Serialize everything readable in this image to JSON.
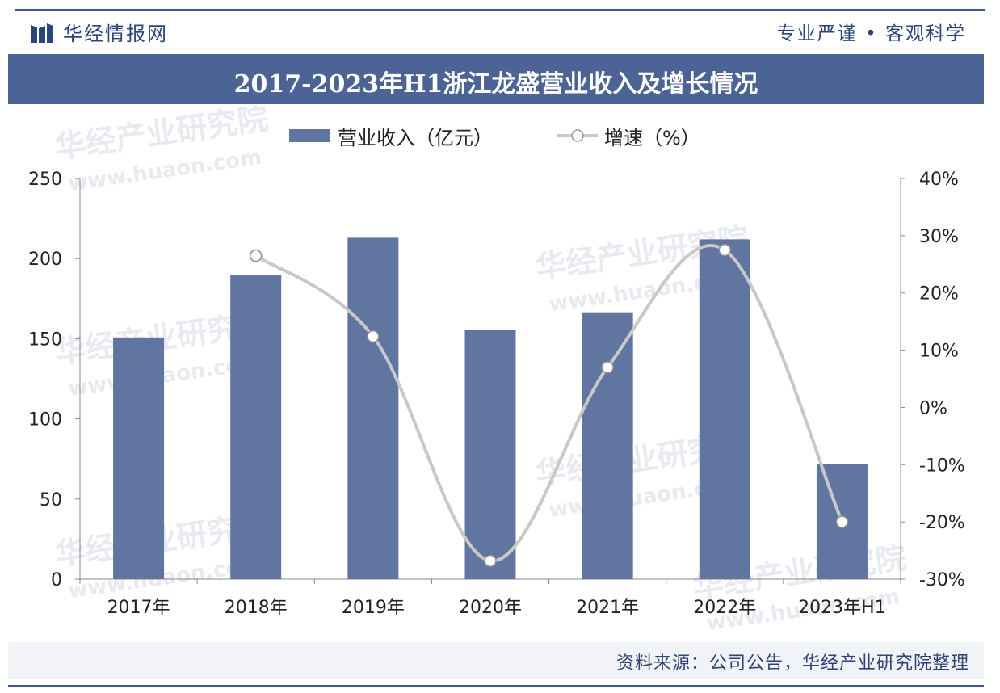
{
  "header": {
    "brand": "华经情报网",
    "slogan": "专业严谨 • 客观科学"
  },
  "title": "2017-2023年H1浙江龙盛营业收入及增长情况",
  "watermark": {
    "cn": "华经产业研究院",
    "url": "www.huaon.com"
  },
  "footer": {
    "source": "资料来源：公司公告，华经产业研究院整理"
  },
  "colors": {
    "bar": "#60759f",
    "line": "#c8c8c8",
    "title_bar": "#4c6396",
    "brand_text": "#2c4578"
  },
  "chart_data": {
    "type": "bar",
    "categories": [
      "2017年",
      "2018年",
      "2019年",
      "2020年",
      "2021年",
      "2022年",
      "2023年H1"
    ],
    "series": [
      {
        "name": "营业收入（亿元）",
        "type": "bar",
        "axis": "left",
        "values": [
          150.8,
          190.0,
          213.0,
          155.5,
          166.5,
          212.0,
          71.8
        ]
      },
      {
        "name": "增速（%）",
        "type": "line",
        "axis": "right",
        "values": [
          null,
          26.5,
          12.4,
          -26.8,
          7.0,
          27.5,
          -20.0
        ]
      }
    ],
    "y_left": {
      "min": 0,
      "max": 250,
      "ticks": [
        0,
        50,
        100,
        150,
        200,
        250
      ]
    },
    "y_right": {
      "min": -30,
      "max": 40,
      "ticks": [
        "-30%",
        "-20%",
        "-10%",
        "0%",
        "10%",
        "20%",
        "30%",
        "40%"
      ]
    },
    "legend_position": "top-center",
    "grid": false
  }
}
